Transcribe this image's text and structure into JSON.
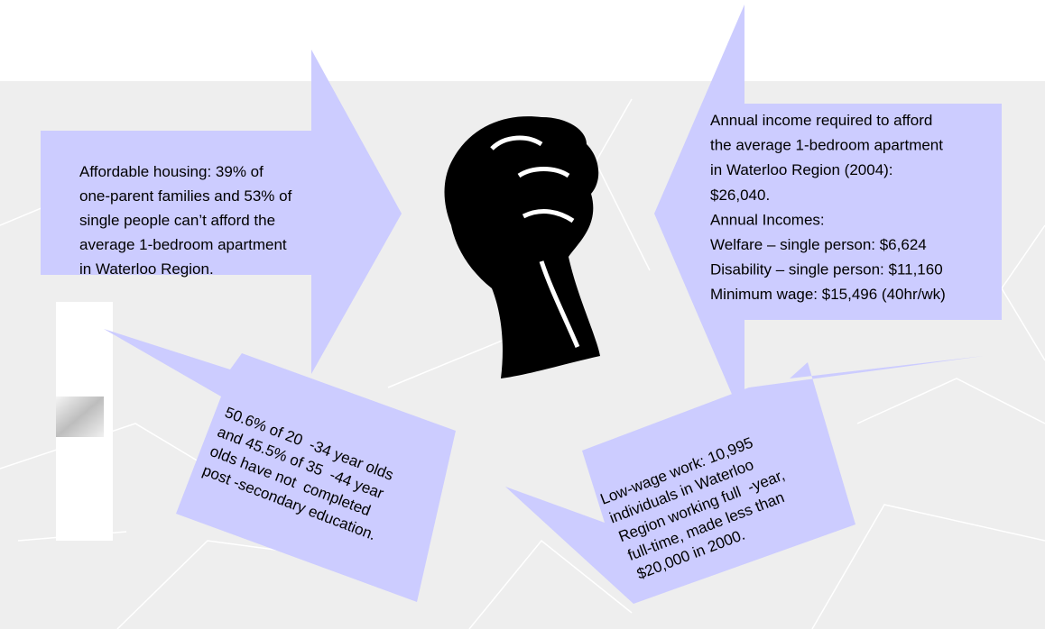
{
  "left_callout": {
    "lines": [
      "Affordable housing: 39% of",
      "one-parent families and 53% of",
      "single people can’t afford the",
      "average 1-bedroom apartment",
      "in Waterloo Region."
    ]
  },
  "right_callout": {
    "lines": [
      "Annual income required to afford",
      "the average 1-bedroom apartment",
      "in Waterloo Region (2004):",
      "$26,040.",
      "Annual Incomes:",
      "Welfare – single person: $6,624",
      "Disability – single person: $11,160",
      "Minimum wage: $15,496 (40hr/wk)"
    ]
  },
  "education_callout": {
    "lines": [
      "50.6% of 20  -34 year olds",
      "and 45.5% of 35  -44 year",
      "olds have not  completed",
      "post -secondary education."
    ]
  },
  "work_callout": {
    "lines": [
      "Low-wage work: 10,995",
      "individuals in Waterloo",
      "Region working full  -year,",
      "full-time, made less than",
      "$20,000 in 2000."
    ]
  }
}
